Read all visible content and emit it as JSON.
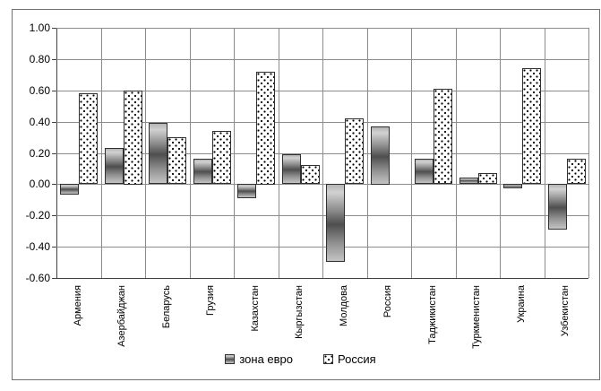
{
  "chart_data": {
    "type": "bar",
    "title": "",
    "xlabel": "",
    "ylabel": "",
    "categories": [
      "Армения",
      "Азербайджан",
      "Беларусь",
      "Грузия",
      "Казахстан",
      "Кыргызстан",
      "Молдова",
      "Россия",
      "Таджикистан",
      "Туркменистан",
      "Украина",
      "Узбекистан"
    ],
    "series": [
      {
        "name": "зона евро",
        "key": "euro",
        "values": [
          -0.07,
          0.23,
          0.39,
          0.16,
          -0.09,
          0.19,
          -0.5,
          0.37,
          0.16,
          0.04,
          -0.03,
          -0.29
        ]
      },
      {
        "name": "Россия",
        "key": "russia",
        "values": [
          0.58,
          0.6,
          0.3,
          0.34,
          0.72,
          0.12,
          0.42,
          null,
          0.61,
          0.07,
          0.74,
          0.16
        ]
      }
    ],
    "ylim": [
      -0.6,
      1.0
    ],
    "ytick_step": 0.2,
    "yticks": [
      {
        "value": 1.0,
        "label": "1.00"
      },
      {
        "value": 0.8,
        "label": "0.80"
      },
      {
        "value": 0.6,
        "label": "0.60"
      },
      {
        "value": 0.4,
        "label": "0.40"
      },
      {
        "value": 0.2,
        "label": "0.20"
      },
      {
        "value": 0.0,
        "label": "0.00"
      },
      {
        "value": -0.2,
        "label": "-0.20"
      },
      {
        "value": -0.4,
        "label": "-0.40"
      },
      {
        "value": -0.6,
        "label": "-0.60"
      }
    ],
    "grid": true,
    "legend_position": "bottom",
    "legend": [
      {
        "label": "зона евро",
        "swatch": "euro-gradient-swatch"
      },
      {
        "label": "Россия",
        "swatch": "dotted-swatch"
      }
    ],
    "colors": {
      "euro_bar_dark": "#4e4e4e",
      "euro_bar_light": "#c4c4c4",
      "russia_bar_bg": "#ffffff",
      "russia_bar_dot": "#000000",
      "bar_border": "#303030",
      "gridline": "#8c8c8c",
      "axis": "#404040",
      "frame_border": "#707070",
      "background": "#ffffff"
    }
  }
}
